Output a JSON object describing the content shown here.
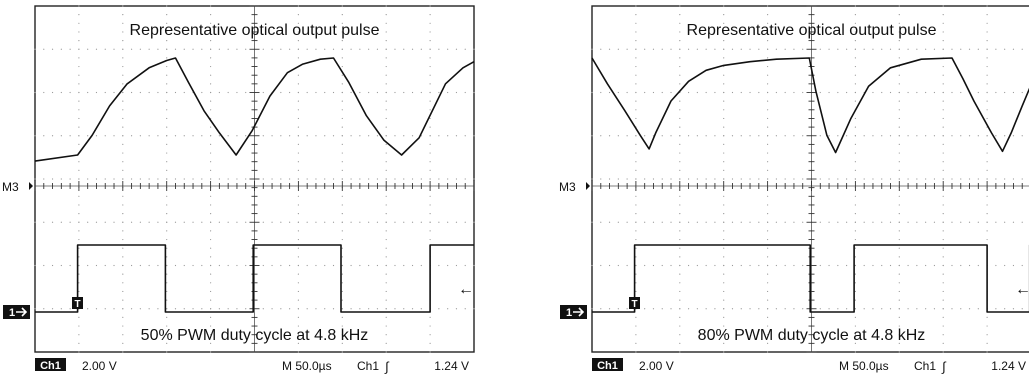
{
  "chart_data": [
    {
      "type": "line",
      "title": "Representative optical output pulse",
      "subtitle": "50% PWM duty cycle at 4.8 kHz",
      "math_channel_label": "M3",
      "channel_marker": "1",
      "trigger_marker": "T",
      "trigger_level_arrow": "←",
      "status": {
        "channel": "Ch1",
        "volts_per_div": "2.00 V",
        "timebase": "M 50.0µs",
        "trigger_source": "Ch1",
        "trigger_slope": "∫",
        "trigger_level": "1.24 V"
      },
      "grid": {
        "divisions_x": 10,
        "divisions_y": 8
      },
      "series": [
        {
          "role": "optical",
          "x": [
            0,
            0.97,
            1.3,
            1.7,
            2.1,
            2.6,
            3.0,
            3.2,
            3.5,
            3.85,
            4.2,
            4.58,
            4.95,
            5.35,
            5.75,
            6.1,
            6.5,
            6.8,
            7.15,
            7.55,
            7.95,
            8.35,
            8.75,
            9.35,
            9.75,
            10
          ],
          "y": [
            7.15,
            7.4,
            8.2,
            9.4,
            10.3,
            10.95,
            11.25,
            11.35,
            10.35,
            9.2,
            8.3,
            7.4,
            8.4,
            9.8,
            10.75,
            11.1,
            11.3,
            11.35,
            10.35,
            9.0,
            8.0,
            7.4,
            8.1,
            10.3,
            10.95,
            11.2
          ]
        },
        {
          "role": "pwm",
          "x": [
            0,
            0.97,
            0.97,
            2.97,
            2.97,
            4.97,
            4.97,
            6.97,
            6.97,
            9.0,
            9.0,
            10
          ],
          "y": [
            0.15,
            0.15,
            1.65,
            1.65,
            0.15,
            0.15,
            1.65,
            1.65,
            0.15,
            0.15,
            1.65,
            1.65
          ]
        }
      ]
    },
    {
      "type": "line",
      "title": "Representative optical output pulse",
      "subtitle": "80% PWM duty cycle at 4.8 kHz",
      "math_channel_label": "M3",
      "channel_marker": "1",
      "trigger_marker": "T",
      "trigger_level_arrow": "←",
      "status": {
        "channel": "Ch1",
        "volts_per_div": "2.00 V",
        "timebase": "M 50.0µs",
        "trigger_source": "Ch1",
        "trigger_slope": "∫",
        "trigger_level": "1.24 V"
      },
      "grid": {
        "divisions_x": 10,
        "divisions_y": 8
      },
      "series": [
        {
          "role": "optical",
          "x": [
            0,
            0.35,
            0.75,
            1.1,
            1.3,
            1.45,
            1.8,
            2.2,
            2.6,
            3.0,
            3.6,
            4.2,
            4.95,
            5.1,
            5.35,
            5.55,
            5.9,
            6.3,
            6.8,
            7.5,
            8.2,
            8.45,
            8.7,
            9.1,
            9.35,
            9.55,
            9.8,
            10
          ],
          "y": [
            11.35,
            10.3,
            9.2,
            8.2,
            7.65,
            8.3,
            9.6,
            10.4,
            10.85,
            11.05,
            11.2,
            11.3,
            11.35,
            10.0,
            8.2,
            7.5,
            8.9,
            10.2,
            10.95,
            11.3,
            11.35,
            10.5,
            9.6,
            8.3,
            7.55,
            8.3,
            9.4,
            10.25
          ]
        },
        {
          "role": "pwm",
          "x": [
            0,
            0.97,
            0.97,
            4.97,
            4.97,
            5.97,
            5.97,
            9.0,
            9.0,
            9.97,
            9.97,
            10
          ],
          "y": [
            0.15,
            0.15,
            1.65,
            1.65,
            0.15,
            0.15,
            1.65,
            1.65,
            0.15,
            0.15,
            1.65,
            1.65
          ]
        }
      ]
    }
  ]
}
